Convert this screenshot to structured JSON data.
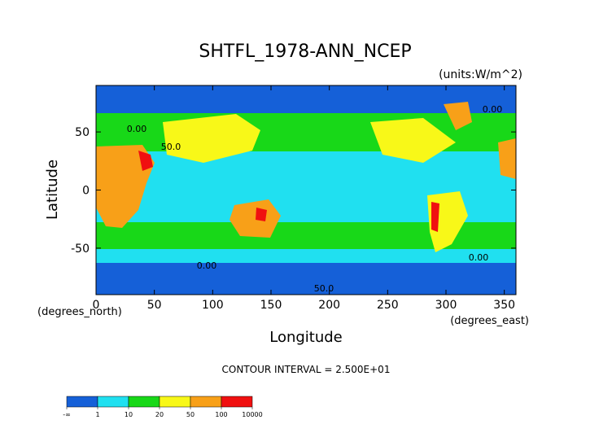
{
  "chart_data": {
    "type": "heatmap",
    "title": "SHTFL_1978-ANN_NCEP",
    "units_label": "(units:W/m^2)",
    "xlabel": "Longitude",
    "ylabel": "Latitude",
    "x_unit_label": "(degrees_east)",
    "y_unit_label": "(degrees_north)",
    "xlim": [
      0,
      360
    ],
    "ylim": [
      -90,
      90
    ],
    "x_ticks": [
      0,
      50,
      100,
      150,
      200,
      250,
      300,
      350
    ],
    "y_ticks": [
      -50,
      0,
      50
    ],
    "contour_interval_text": "CONTOUR INTERVAL = 2.500E+01",
    "contour_labels": [
      "0.00",
      "50.0",
      "0.00",
      "0.00",
      "50.0",
      "0.00"
    ],
    "colorbar": {
      "tick_labels": [
        "-∞",
        "1",
        "10",
        "20",
        "50",
        "100",
        "10000"
      ],
      "levels": [
        {
          "from": "-∞",
          "to": 1,
          "color": "#1560d8"
        },
        {
          "from": 1,
          "to": 10,
          "color": "#20e0f0"
        },
        {
          "from": 10,
          "to": 20,
          "color": "#18d818"
        },
        {
          "from": 20,
          "to": 50,
          "color": "#f8f818"
        },
        {
          "from": 50,
          "to": 100,
          "color": "#f8a018"
        },
        {
          "from": 100,
          "to": 10000,
          "color": "#f01010"
        }
      ]
    }
  }
}
